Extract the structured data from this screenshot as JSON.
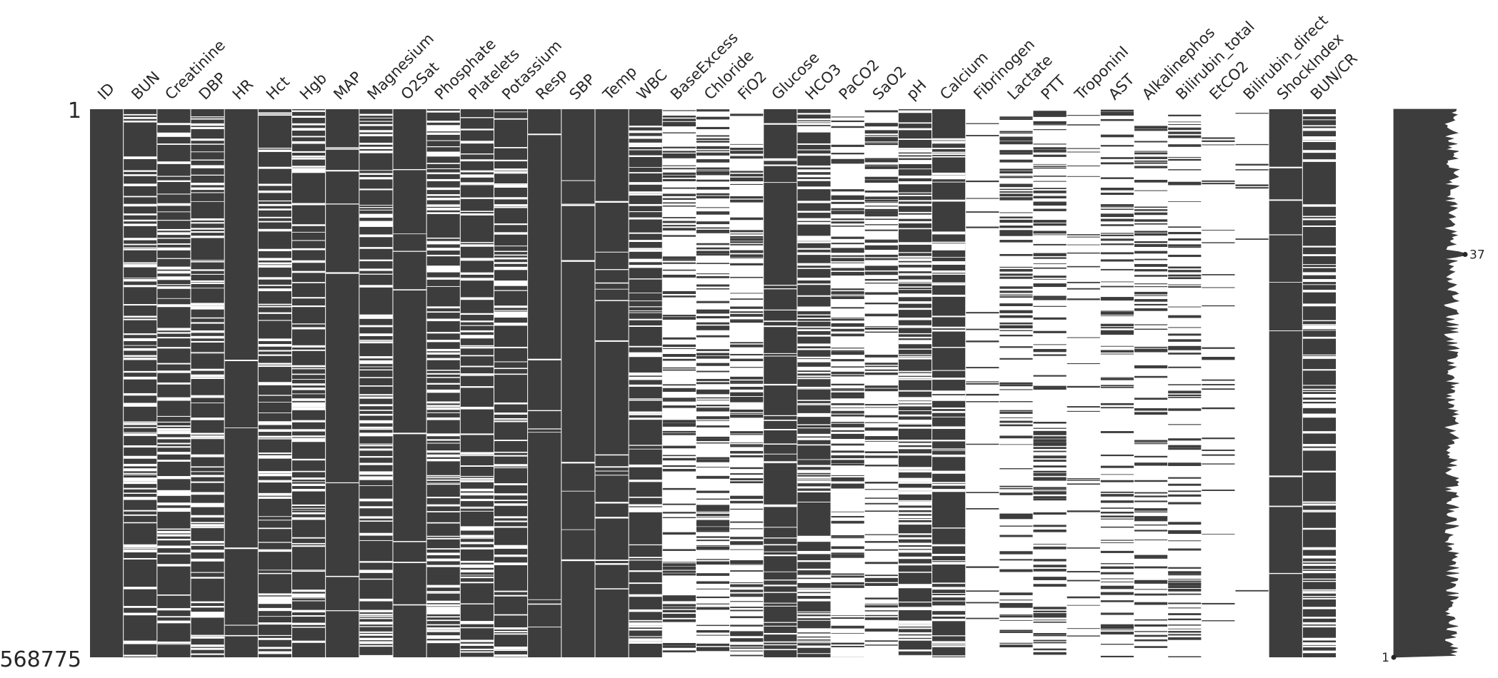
{
  "chart_data": {
    "type": "missingno-matrix",
    "colors": {
      "filled": "#3d3d3d",
      "missing": "#ffffff",
      "background": "#ffffff",
      "text": "#262626"
    },
    "row_range": {
      "first": "1",
      "last": "568775"
    },
    "columns": [
      {
        "name": "ID",
        "completeness": 1.0
      },
      {
        "name": "BUN",
        "completeness": 0.7
      },
      {
        "name": "Creatinine",
        "completeness": 0.7
      },
      {
        "name": "DBP",
        "completeness": 0.68
      },
      {
        "name": "HR",
        "completeness": 0.98
      },
      {
        "name": "Hct",
        "completeness": 0.72
      },
      {
        "name": "Hgb",
        "completeness": 0.7
      },
      {
        "name": "MAP",
        "completeness": 0.97
      },
      {
        "name": "Magnesium",
        "completeness": 0.62
      },
      {
        "name": "O2Sat",
        "completeness": 0.97
      },
      {
        "name": "Phosphate",
        "completeness": 0.55
      },
      {
        "name": "Platelets",
        "completeness": 0.7
      },
      {
        "name": "Potassium",
        "completeness": 0.72
      },
      {
        "name": "Resp",
        "completeness": 0.97
      },
      {
        "name": "SBP",
        "completeness": 0.97
      },
      {
        "name": "Temp",
        "completeness": 0.94
      },
      {
        "name": "WBC",
        "completeness": 0.7
      },
      {
        "name": "BaseExcess",
        "completeness": 0.38
      },
      {
        "name": "Chloride",
        "completeness": 0.48
      },
      {
        "name": "FiO2",
        "completeness": 0.42
      },
      {
        "name": "Glucose",
        "completeness": 0.85
      },
      {
        "name": "HCO3",
        "completeness": 0.55
      },
      {
        "name": "PaCO2",
        "completeness": 0.48
      },
      {
        "name": "SaO2",
        "completeness": 0.38
      },
      {
        "name": "pH",
        "completeness": 0.5
      },
      {
        "name": "Calcium",
        "completeness": 0.7
      },
      {
        "name": "Fibrinogen",
        "completeness": 0.08
      },
      {
        "name": "Lactate",
        "completeness": 0.38
      },
      {
        "name": "PTT",
        "completeness": 0.45
      },
      {
        "name": "TroponinI",
        "completeness": 0.12
      },
      {
        "name": "AST",
        "completeness": 0.35
      },
      {
        "name": "Alkalinephos",
        "completeness": 0.33
      },
      {
        "name": "Bilirubin_total",
        "completeness": 0.33
      },
      {
        "name": "EtCO2",
        "completeness": 0.1
      },
      {
        "name": "Bilirubin_direct",
        "completeness": 0.03
      },
      {
        "name": "ShockIndex",
        "completeness": 0.97
      },
      {
        "name": "BUN/CR",
        "completeness": 0.7
      }
    ],
    "sparkline": {
      "min_label": "1",
      "max_label": "37",
      "max_position_fraction": 0.265,
      "range": [
        1,
        37
      ]
    }
  }
}
